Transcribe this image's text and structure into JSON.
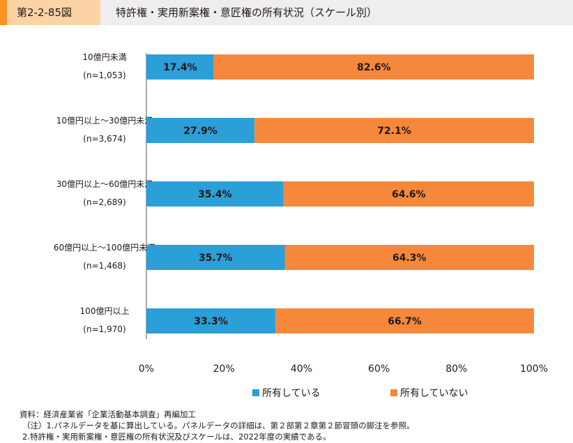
{
  "figure_number": "第2-2-85図",
  "title": "特許権・実用新案権・意匠権の所有状況（スケール別）",
  "colors": {
    "owned": "#2a9fd8",
    "not_owned": "#f5883b",
    "accent": "#f7931e",
    "label_bg": "#fbd3a5",
    "header_bg": "#eeeeee"
  },
  "legend": {
    "owned": "所有している",
    "not_owned": "所有していない"
  },
  "notes": [
    "資料：経済産業省「企業活動基本調査」再編加工",
    "（注）1.パネルデータを基に算出している。パネルデータの詳細は、第２部第２章第２節冒頭の脚注を参照。",
    "2.特許権・実用新案権・意匠権の所有状況及びスケールは、2022年度の実績である。"
  ],
  "chart_data": {
    "type": "bar",
    "orientation": "horizontal",
    "stacked": true,
    "categories": [
      {
        "label": "10億円未満",
        "n": "(n=1,053)"
      },
      {
        "label": "10億円以上～30億円未満",
        "n": "(n=3,674)"
      },
      {
        "label": "30億円以上～60億円未満",
        "n": "(n=2,689)"
      },
      {
        "label": "60億円以上～100億円未満",
        "n": "(n=1,468)"
      },
      {
        "label": "100億円以上",
        "n": "(n=1,970)"
      }
    ],
    "series": [
      {
        "name": "所有している",
        "values": [
          17.4,
          27.9,
          35.4,
          35.7,
          33.3
        ],
        "labels": [
          "17.4%",
          "27.9%",
          "35.4%",
          "35.7%",
          "33.3%"
        ]
      },
      {
        "name": "所有していない",
        "values": [
          82.6,
          72.1,
          64.6,
          64.3,
          66.7
        ],
        "labels": [
          "82.6%",
          "72.1%",
          "64.6%",
          "64.3%",
          "66.7%"
        ]
      }
    ],
    "xlim": [
      0,
      100
    ],
    "xticks": [
      "0%",
      "20%",
      "40%",
      "60%",
      "80%",
      "100%"
    ],
    "grid": false,
    "legend_position": "bottom"
  }
}
